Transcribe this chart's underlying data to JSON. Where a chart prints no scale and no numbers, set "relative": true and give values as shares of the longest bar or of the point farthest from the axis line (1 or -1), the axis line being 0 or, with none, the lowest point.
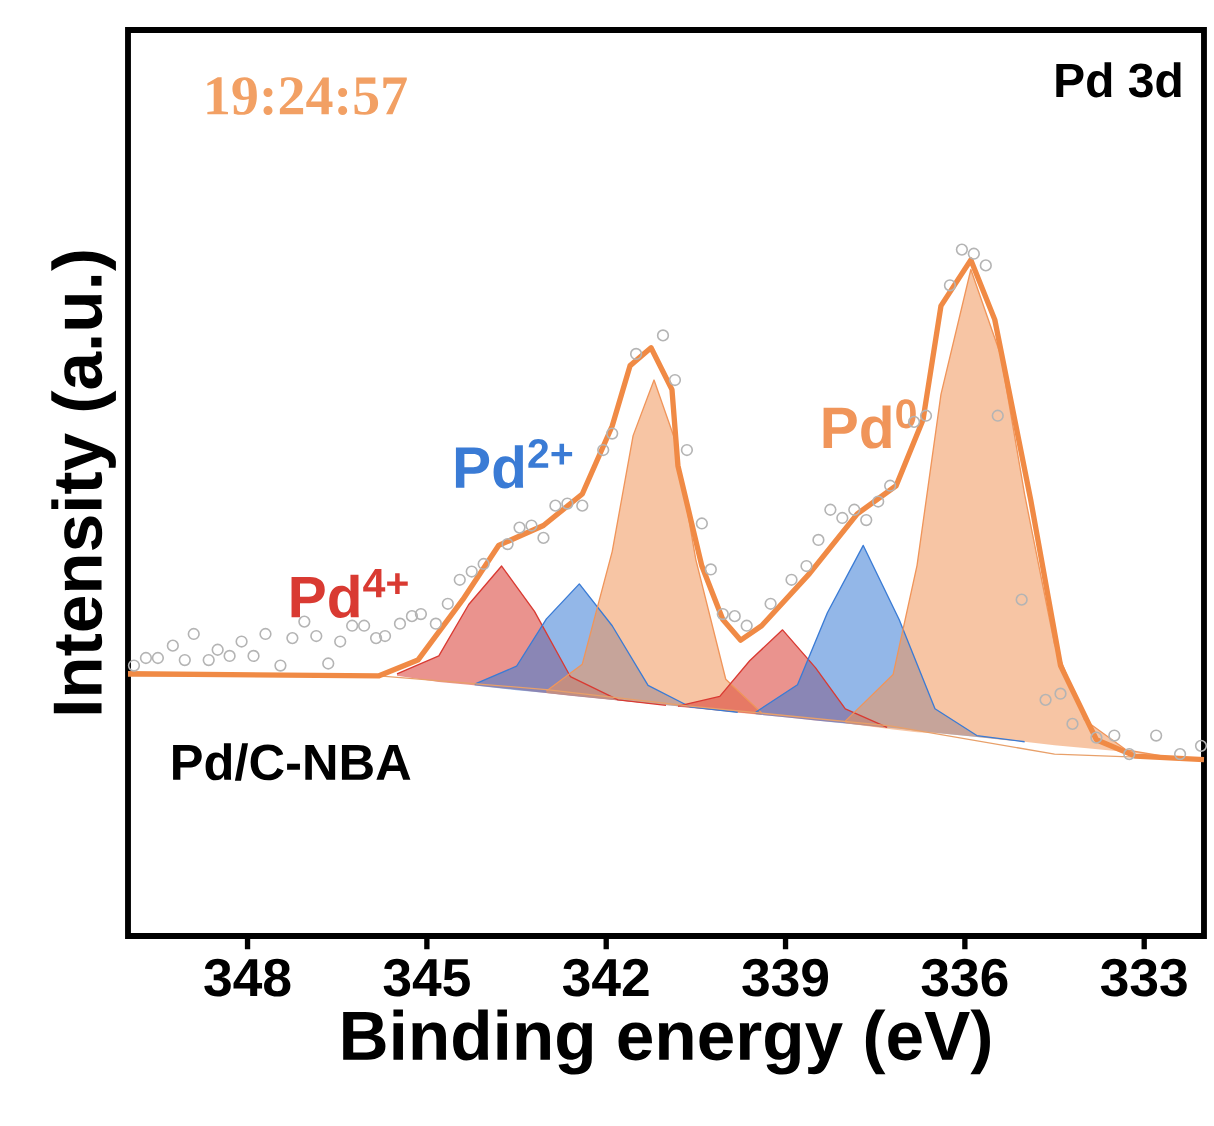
{
  "chart_data": {
    "type": "line",
    "xlabel": "Binding energy (eV)",
    "ylabel": "Intensity (a.u.)",
    "relative": true,
    "grid": false,
    "xlim": [
      350.0,
      332.0
    ],
    "xticks": [
      348,
      345,
      342,
      339,
      336,
      333
    ],
    "annotations": [
      "19:24:57",
      "Pd 3d",
      "Pd/C-NBA"
    ],
    "series": [
      {
        "name": "Pd$^{4+}$",
        "color": "#d93a32",
        "x": [
          345.5,
          344.8,
          344.3,
          343.75,
          343.2,
          342.6,
          341.8,
          341.0
        ],
        "values": [
          0.382,
          0.408,
          0.483,
          0.539,
          0.473,
          0.378,
          0.344,
          0.336
        ],
        "lower": [
          0.379,
          0.37,
          0.366,
          0.361,
          0.356,
          0.35,
          0.343,
          0.336
        ],
        "upper": [
          0.382,
          0.408,
          0.483,
          0.539,
          0.473,
          0.378,
          0.344,
          0.336
        ]
      },
      {
        "name": "Pd$^{2+}$",
        "color": "#3a7bd5",
        "x": [
          344.2,
          343.5,
          343.0,
          342.45,
          341.9,
          341.3,
          340.6,
          339.8
        ],
        "values": [
          0.367,
          0.393,
          0.462,
          0.513,
          0.452,
          0.365,
          0.334,
          0.326
        ],
        "lower": [
          0.365,
          0.358,
          0.354,
          0.349,
          0.344,
          0.339,
          0.333,
          0.326
        ],
        "upper": [
          0.367,
          0.393,
          0.462,
          0.513,
          0.452,
          0.365,
          0.334,
          0.326
        ]
      },
      {
        "name": "Pd$^{0}$",
        "color": "#f0955a",
        "x": [
          343.0,
          342.4,
          341.9,
          341.55,
          341.2,
          340.85,
          340.5,
          340.0,
          339.4
        ],
        "values": [
          0.357,
          0.396,
          0.56,
          0.729,
          0.81,
          0.723,
          0.548,
          0.374,
          0.325
        ],
        "lower": [
          0.354,
          0.349,
          0.344,
          0.3411,
          0.338,
          0.335,
          0.332,
          0.327,
          0.322
        ],
        "upper": [
          0.357,
          0.396,
          0.56,
          0.729,
          0.81,
          0.723,
          0.548,
          0.374,
          0.325
        ]
      },
      {
        "color": "#d93a32",
        "x": [
          340.8,
          340.1,
          339.6,
          339.05,
          338.5,
          338.0,
          337.3
        ],
        "values": [
          0.335,
          0.349,
          0.401,
          0.446,
          0.391,
          0.331,
          0.304
        ],
        "lower": [
          0.334,
          0.328,
          0.324,
          0.319,
          0.314,
          0.31,
          0.303
        ],
        "upper": [
          0.335,
          0.349,
          0.401,
          0.446,
          0.391,
          0.331,
          0.304
        ]
      },
      {
        "color": "#3a7bd5",
        "x": [
          339.5,
          338.8,
          338.3,
          337.7,
          337.1,
          336.5,
          335.8,
          335.0
        ],
        "values": [
          0.326,
          0.366,
          0.471,
          0.569,
          0.461,
          0.331,
          0.292,
          0.283
        ],
        "lower": [
          0.323,
          0.317,
          0.312,
          0.307,
          0.302,
          0.296,
          0.29,
          0.283
        ],
        "upper": [
          0.326,
          0.366,
          0.471,
          0.569,
          0.461,
          0.331,
          0.292,
          0.283
        ]
      },
      {
        "color": "#f0955a",
        "x": [
          338.0,
          337.2,
          336.8,
          336.4,
          335.9,
          335.4,
          335.0,
          334.5,
          334.0,
          333.3,
          332.6
        ],
        "values": [
          0.313,
          0.381,
          0.54,
          0.789,
          0.971,
          0.846,
          0.643,
          0.425,
          0.315,
          0.271,
          0.261
        ],
        "lower": [
          0.31,
          0.301,
          0.297,
          0.295,
          0.291,
          0.286,
          0.283,
          0.278,
          0.274,
          0.268,
          0.261
        ],
        "upper": [
          0.313,
          0.381,
          0.54,
          0.789,
          0.971,
          0.846,
          0.643,
          0.425,
          0.315,
          0.271,
          0.261
        ]
      },
      {
        "color": "#e8a06a",
        "x": [
          350.0,
          345.8,
          343.0,
          340.6,
          337.25,
          334.5,
          332.0
        ],
        "values": [
          0.379,
          0.379,
          0.359,
          0.335,
          0.306,
          0.265,
          0.257
        ]
      },
      {
        "color": "#f08a45",
        "x": [
          350.0,
          345.8,
          345.15,
          344.4,
          343.8,
          343.05,
          342.4,
          341.9,
          341.6,
          341.25,
          340.9,
          340.8,
          340.4,
          340.05,
          339.75,
          339.4,
          338.6,
          337.8,
          337.15,
          336.7,
          336.4,
          335.9,
          335.5,
          334.9,
          334.4,
          333.8,
          333.15,
          332.0
        ],
        "values": [
          0.382,
          0.379,
          0.402,
          0.49,
          0.569,
          0.598,
          0.644,
          0.743,
          0.831,
          0.857,
          0.796,
          0.685,
          0.539,
          0.461,
          0.431,
          0.452,
          0.528,
          0.615,
          0.656,
          0.752,
          0.918,
          0.985,
          0.898,
          0.636,
          0.394,
          0.286,
          0.262,
          0.257
        ]
      },
      {
        "type": "scatter",
        "marker": "circle",
        "color": "#b4b4b4",
        "x": [
          349.9,
          349.7,
          349.5,
          349.25,
          349.05,
          348.9,
          348.65,
          348.5,
          348.3,
          348.1,
          347.9,
          347.7,
          347.45,
          347.25,
          347.05,
          346.85,
          346.65,
          346.45,
          346.25,
          346.05,
          345.85,
          345.7,
          345.45,
          345.25,
          345.1,
          344.85,
          344.65,
          344.45,
          344.25,
          344.05,
          343.65,
          343.45,
          343.25,
          343.05,
          342.85,
          342.65,
          342.4,
          342.05,
          341.9,
          341.5,
          341.05,
          340.85,
          340.65,
          340.4,
          340.25,
          340.05,
          339.85,
          339.65,
          339.25,
          338.9,
          338.65,
          338.45,
          338.25,
          338.05,
          337.85,
          337.65,
          337.45,
          337.25,
          336.85,
          336.65,
          336.25,
          336.05,
          335.85,
          335.65,
          335.45,
          335.05,
          334.65,
          334.4,
          334.2,
          333.8,
          333.5,
          333.25,
          332.8,
          332.4,
          332.05
        ],
        "values": [
          0.394,
          0.405,
          0.405,
          0.423,
          0.402,
          0.44,
          0.402,
          0.417,
          0.408,
          0.429,
          0.408,
          0.44,
          0.394,
          0.434,
          0.458,
          0.437,
          0.397,
          0.429,
          0.452,
          0.452,
          0.434,
          0.437,
          0.455,
          0.466,
          0.469,
          0.455,
          0.484,
          0.519,
          0.531,
          0.542,
          0.571,
          0.595,
          0.598,
          0.58,
          0.627,
          0.63,
          0.627,
          0.708,
          0.732,
          0.848,
          0.875,
          0.81,
          0.708,
          0.601,
          0.534,
          0.469,
          0.466,
          0.452,
          0.484,
          0.519,
          0.539,
          0.577,
          0.621,
          0.609,
          0.621,
          0.606,
          0.633,
          0.656,
          0.749,
          0.758,
          0.948,
          1.0,
          0.994,
          0.977,
          0.758,
          0.49,
          0.344,
          0.353,
          0.309,
          0.289,
          0.292,
          0.265,
          0.292,
          0.265,
          0.277
        ]
      }
    ]
  }
}
